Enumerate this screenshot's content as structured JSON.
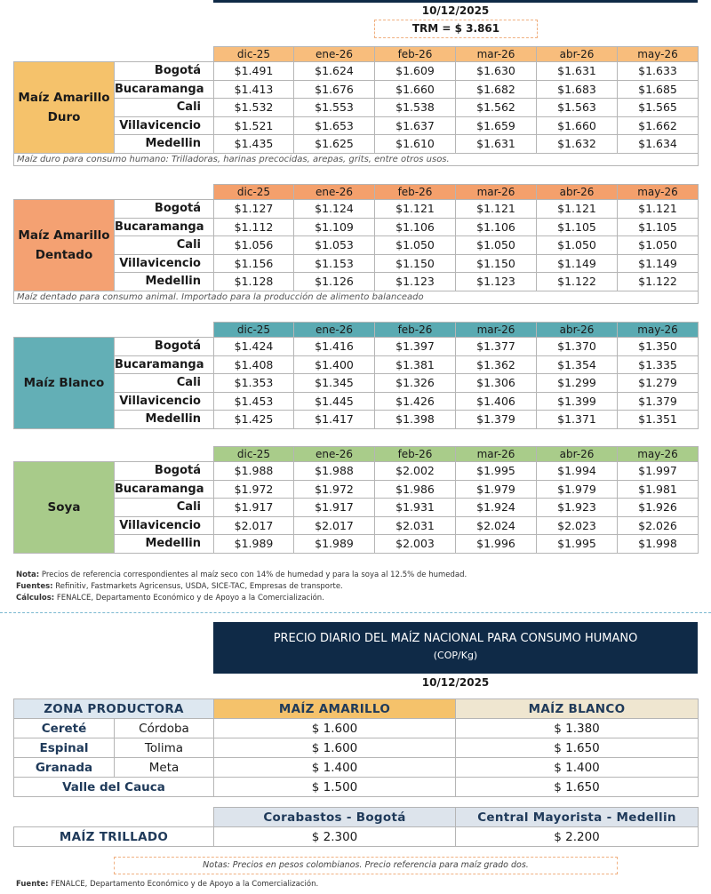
{
  "header": {
    "date": "10/12/2025",
    "trm": "TRM = $ 3.861"
  },
  "tables": [
    {
      "product": "Maíz Amarillo Duro",
      "months": [
        "dic-25",
        "ene-26",
        "feb-26",
        "mar-26",
        "abr-26",
        "may-26"
      ],
      "rows": [
        {
          "city": "Bogotá",
          "prices": [
            "$1.491",
            "$1.624",
            "$1.609",
            "$1.630",
            "$1.631",
            "$1.633"
          ]
        },
        {
          "city": "Bucaramanga",
          "prices": [
            "$1.413",
            "$1.676",
            "$1.660",
            "$1.682",
            "$1.683",
            "$1.685"
          ]
        },
        {
          "city": "Cali",
          "prices": [
            "$1.532",
            "$1.553",
            "$1.538",
            "$1.562",
            "$1.563",
            "$1.565"
          ]
        },
        {
          "city": "Villavicencio",
          "prices": [
            "$1.521",
            "$1.653",
            "$1.637",
            "$1.659",
            "$1.660",
            "$1.662"
          ]
        },
        {
          "city": "Medellin",
          "prices": [
            "$1.435",
            "$1.625",
            "$1.610",
            "$1.631",
            "$1.632",
            "$1.634"
          ]
        }
      ],
      "note": "Maíz duro para consumo humano: Trilladoras, harinas precocidas, arepas, grits, entre otros usos."
    },
    {
      "product": "Maíz Amarillo Dentado",
      "months": [
        "dic-25",
        "ene-26",
        "feb-26",
        "mar-26",
        "abr-26",
        "may-26"
      ],
      "rows": [
        {
          "city": "Bogotá",
          "prices": [
            "$1.127",
            "$1.124",
            "$1.121",
            "$1.121",
            "$1.121",
            "$1.121"
          ]
        },
        {
          "city": "Bucaramanga",
          "prices": [
            "$1.112",
            "$1.109",
            "$1.106",
            "$1.106",
            "$1.105",
            "$1.105"
          ]
        },
        {
          "city": "Cali",
          "prices": [
            "$1.056",
            "$1.053",
            "$1.050",
            "$1.050",
            "$1.050",
            "$1.050"
          ]
        },
        {
          "city": "Villavicencio",
          "prices": [
            "$1.156",
            "$1.153",
            "$1.150",
            "$1.150",
            "$1.149",
            "$1.149"
          ]
        },
        {
          "city": "Medellin",
          "prices": [
            "$1.128",
            "$1.126",
            "$1.123",
            "$1.123",
            "$1.122",
            "$1.122"
          ]
        }
      ],
      "note": "Maíz dentado para consumo animal. Importado para la producción de alimento balanceado"
    },
    {
      "product": "Maíz Blanco",
      "months": [
        "dic-25",
        "ene-26",
        "feb-26",
        "mar-26",
        "abr-26",
        "may-26"
      ],
      "rows": [
        {
          "city": "Bogotá",
          "prices": [
            "$1.424",
            "$1.416",
            "$1.397",
            "$1.377",
            "$1.370",
            "$1.350"
          ]
        },
        {
          "city": "Bucaramanga",
          "prices": [
            "$1.408",
            "$1.400",
            "$1.381",
            "$1.362",
            "$1.354",
            "$1.335"
          ]
        },
        {
          "city": "Cali",
          "prices": [
            "$1.353",
            "$1.345",
            "$1.326",
            "$1.306",
            "$1.299",
            "$1.279"
          ]
        },
        {
          "city": "Villavicencio",
          "prices": [
            "$1.453",
            "$1.445",
            "$1.426",
            "$1.406",
            "$1.399",
            "$1.379"
          ]
        },
        {
          "city": "Medellin",
          "prices": [
            "$1.425",
            "$1.417",
            "$1.398",
            "$1.379",
            "$1.371",
            "$1.351"
          ]
        }
      ]
    },
    {
      "product": "Soya",
      "months": [
        "dic-25",
        "ene-26",
        "feb-26",
        "mar-26",
        "abr-26",
        "may-26"
      ],
      "rows": [
        {
          "city": "Bogotá",
          "prices": [
            "$1.988",
            "$1.988",
            "$2.002",
            "$1.995",
            "$1.994",
            "$1.997"
          ]
        },
        {
          "city": "Bucaramanga",
          "prices": [
            "$1.972",
            "$1.972",
            "$1.986",
            "$1.979",
            "$1.979",
            "$1.981"
          ]
        },
        {
          "city": "Cali",
          "prices": [
            "$1.917",
            "$1.917",
            "$1.931",
            "$1.924",
            "$1.923",
            "$1.926"
          ]
        },
        {
          "city": "Villavicencio",
          "prices": [
            "$2.017",
            "$2.017",
            "$2.031",
            "$2.024",
            "$2.023",
            "$2.026"
          ]
        },
        {
          "city": "Medellin",
          "prices": [
            "$1.989",
            "$1.989",
            "$2.003",
            "$1.996",
            "$1.995",
            "$1.998"
          ]
        }
      ]
    }
  ],
  "footnotes": [
    {
      "label": "Nota:",
      "text": "Precios de referencia correspondientes al maíz seco con 14% de humedad y para la soya al 12.5% de humedad."
    },
    {
      "label": "Fuentes:",
      "text": "Refinitiv, Fastmarkets Agricensus, USDA, SICE-TAC, Empresas de transporte."
    },
    {
      "label": "Cálculos:",
      "text": "FENALCE, Departamento Económico y de Apoyo a la Comercialización."
    }
  ],
  "daily": {
    "title": "PRECIO DIARIO DEL MAÍZ NACIONAL PARA CONSUMO HUMANO",
    "unit": "(COP/Kg)",
    "date": "10/12/2025",
    "headers": [
      "ZONA PRODUCTORA",
      "MAÍZ AMARILLO",
      "MAÍZ BLANCO"
    ],
    "rows": [
      {
        "zone": "Cereté",
        "dept": "Córdoba",
        "amarillo": "$ 1.600",
        "blanco": "$ 1.380"
      },
      {
        "zone": "Espinal",
        "dept": "Tolima",
        "amarillo": "$ 1.600",
        "blanco": "$ 1.650"
      },
      {
        "zone": "Granada",
        "dept": "Meta",
        "amarillo": "$ 1.400",
        "blanco": "$ 1.400"
      },
      {
        "zone": "Valle del Cauca",
        "amarillo": "$ 1.500",
        "blanco": "$ 1.650"
      }
    ],
    "markets": [
      "Corabastos - Bogotá",
      "Central Mayorista - Medellin"
    ],
    "trillado": {
      "label": "MAÍZ TRILLADO",
      "prices": [
        "$ 2.300",
        "$ 2.200"
      ]
    },
    "notes": "Notas: Precios en pesos colombianos. Precio referencia para maíz grado dos.",
    "source": {
      "label": "Fuente:",
      "text": "FENALCE, Departamento Económico y de Apoyo a la Comercialización."
    }
  }
}
